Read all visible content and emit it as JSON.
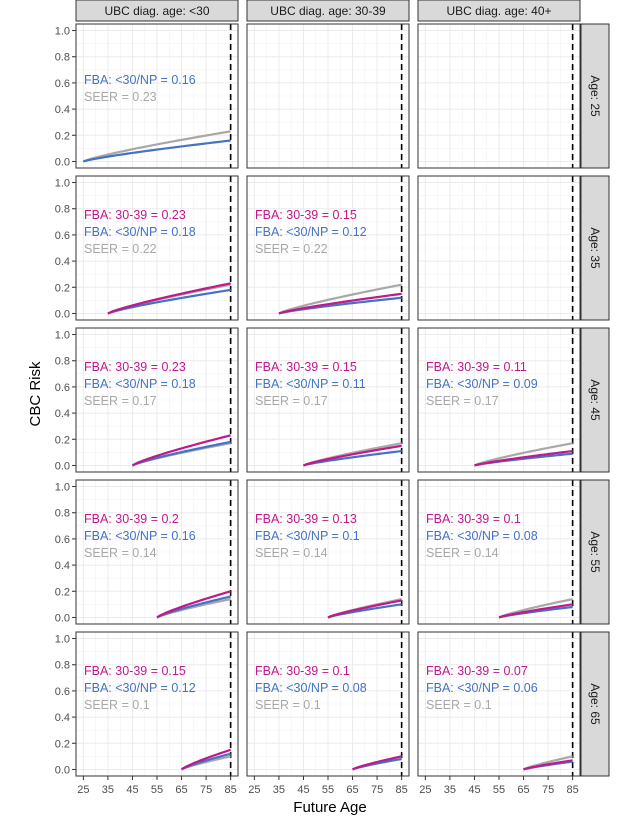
{
  "chart_data": {
    "type": "line",
    "xlabel": "Future Age",
    "ylabel": "CBC Risk",
    "xlim": [
      25,
      85
    ],
    "ylim": [
      0,
      1
    ],
    "x_ticks": [
      25,
      35,
      45,
      55,
      65,
      75,
      85
    ],
    "y_ticks": [
      0.0,
      0.2,
      0.4,
      0.6,
      0.8,
      1.0
    ],
    "y_tick_labels": [
      "0.0",
      "0.2",
      "0.4",
      "0.6",
      "0.8",
      "1.0"
    ],
    "vline_x": 85,
    "grid": true,
    "column_strips": [
      "UBC diag. age: <30",
      "UBC diag. age: 30-39",
      "UBC diag. age: 40+"
    ],
    "row_strips": [
      "Age: 25",
      "Age: 35",
      "Age: 45",
      "Age: 55",
      "Age: 65"
    ],
    "series_colors": {
      "fba_3039": "#c2188b",
      "fba_lt30": "#4472c4",
      "seer": "#a8a8a8"
    },
    "panels": [
      {
        "row": 0,
        "col": 0,
        "start_age": 25,
        "empty": false,
        "labels": [
          "",
          "FBA: <30/NP = 0.16",
          "SEER = 0.23"
        ],
        "values": {
          "fba_3039": null,
          "fba_lt30": 0.16,
          "seer": 0.23
        }
      },
      {
        "row": 0,
        "col": 1,
        "empty": true
      },
      {
        "row": 0,
        "col": 2,
        "empty": true
      },
      {
        "row": 1,
        "col": 0,
        "start_age": 35,
        "empty": false,
        "labels": [
          "FBA: 30-39 = 0.23",
          "FBA: <30/NP = 0.18",
          "SEER = 0.22"
        ],
        "values": {
          "fba_3039": 0.23,
          "fba_lt30": 0.18,
          "seer": 0.22
        }
      },
      {
        "row": 1,
        "col": 1,
        "start_age": 35,
        "empty": false,
        "labels": [
          "FBA: 30-39 = 0.15",
          "FBA: <30/NP = 0.12",
          "SEER = 0.22"
        ],
        "values": {
          "fba_3039": 0.15,
          "fba_lt30": 0.12,
          "seer": 0.22
        }
      },
      {
        "row": 1,
        "col": 2,
        "empty": true
      },
      {
        "row": 2,
        "col": 0,
        "start_age": 45,
        "empty": false,
        "labels": [
          "FBA: 30-39 = 0.23",
          "FBA: <30/NP = 0.18",
          "SEER = 0.17"
        ],
        "values": {
          "fba_3039": 0.23,
          "fba_lt30": 0.18,
          "seer": 0.17
        }
      },
      {
        "row": 2,
        "col": 1,
        "start_age": 45,
        "empty": false,
        "labels": [
          "FBA: 30-39 = 0.15",
          "FBA: <30/NP = 0.11",
          "SEER = 0.17"
        ],
        "values": {
          "fba_3039": 0.15,
          "fba_lt30": 0.11,
          "seer": 0.17
        }
      },
      {
        "row": 2,
        "col": 2,
        "start_age": 45,
        "empty": false,
        "labels": [
          "FBA: 30-39 = 0.11",
          "FBA: <30/NP = 0.09",
          "SEER = 0.17"
        ],
        "values": {
          "fba_3039": 0.11,
          "fba_lt30": 0.09,
          "seer": 0.17
        }
      },
      {
        "row": 3,
        "col": 0,
        "start_age": 55,
        "empty": false,
        "labels": [
          "FBA: 30-39 = 0.2",
          "FBA: <30/NP = 0.16",
          "SEER = 0.14"
        ],
        "values": {
          "fba_3039": 0.2,
          "fba_lt30": 0.16,
          "seer": 0.14
        }
      },
      {
        "row": 3,
        "col": 1,
        "start_age": 55,
        "empty": false,
        "labels": [
          "FBA: 30-39 = 0.13",
          "FBA: <30/NP = 0.1",
          "SEER = 0.14"
        ],
        "values": {
          "fba_3039": 0.13,
          "fba_lt30": 0.1,
          "seer": 0.14
        }
      },
      {
        "row": 3,
        "col": 2,
        "start_age": 55,
        "empty": false,
        "labels": [
          "FBA: 30-39 = 0.1",
          "FBA: <30/NP = 0.08",
          "SEER = 0.14"
        ],
        "values": {
          "fba_3039": 0.1,
          "fba_lt30": 0.08,
          "seer": 0.14
        }
      },
      {
        "row": 4,
        "col": 0,
        "start_age": 65,
        "empty": false,
        "labels": [
          "FBA: 30-39 = 0.15",
          "FBA: <30/NP = 0.12",
          "SEER = 0.1"
        ],
        "values": {
          "fba_3039": 0.15,
          "fba_lt30": 0.12,
          "seer": 0.1
        }
      },
      {
        "row": 4,
        "col": 1,
        "start_age": 65,
        "empty": false,
        "labels": [
          "FBA: 30-39 = 0.1",
          "FBA: <30/NP = 0.08",
          "SEER = 0.1"
        ],
        "values": {
          "fba_3039": 0.1,
          "fba_lt30": 0.08,
          "seer": 0.1
        }
      },
      {
        "row": 4,
        "col": 2,
        "start_age": 65,
        "empty": false,
        "labels": [
          "FBA: 30-39 = 0.07",
          "FBA: <30/NP = 0.06",
          "SEER = 0.1"
        ],
        "values": {
          "fba_3039": 0.07,
          "fba_lt30": 0.06,
          "seer": 0.1
        }
      }
    ]
  }
}
